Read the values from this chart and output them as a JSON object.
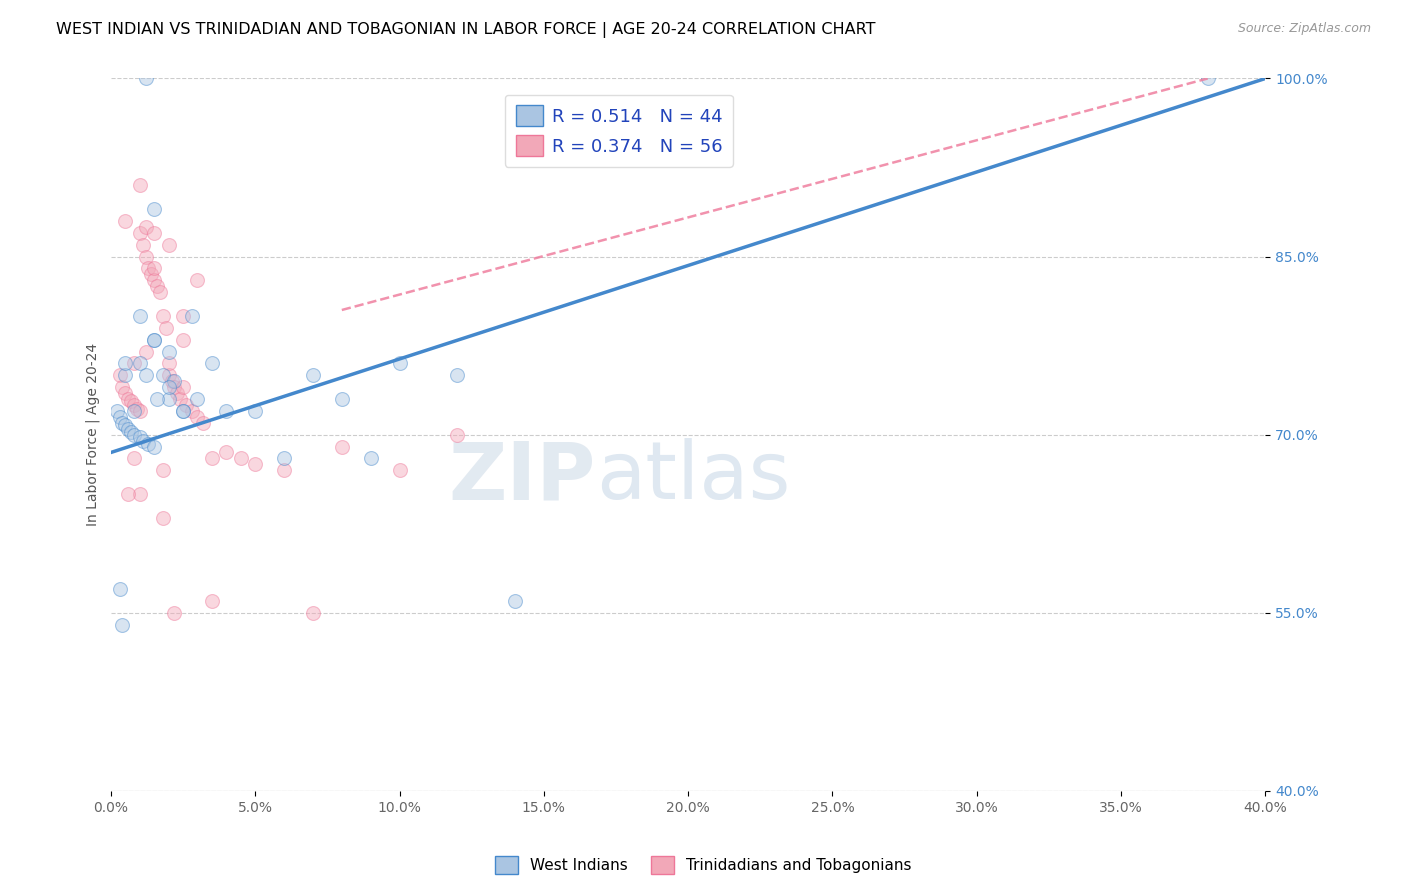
{
  "title": "WEST INDIAN VS TRINIDADIAN AND TOBAGONIAN IN LABOR FORCE | AGE 20-24 CORRELATION CHART",
  "source": "Source: ZipAtlas.com",
  "ylabel": "In Labor Force | Age 20-24",
  "xlim": [
    0.0,
    40.0
  ],
  "ylim": [
    40.0,
    100.0
  ],
  "xticks": [
    0.0,
    5.0,
    10.0,
    15.0,
    20.0,
    25.0,
    30.0,
    35.0,
    40.0
  ],
  "yticks": [
    40.0,
    55.0,
    70.0,
    85.0,
    100.0
  ],
  "blue_R": 0.514,
  "blue_N": 44,
  "pink_R": 0.374,
  "pink_N": 56,
  "blue_color": "#aac5e2",
  "pink_color": "#f2a8b8",
  "blue_line_color": "#4488cc",
  "pink_line_color": "#ee7799",
  "watermark_zip": "ZIP",
  "watermark_atlas": "atlas",
  "legend_blue_label": "West Indians",
  "legend_pink_label": "Trinidadians and Tobagonians",
  "blue_scatter_x": [
    1.2,
    1.5,
    1.0,
    0.5,
    0.2,
    0.3,
    0.4,
    0.5,
    0.6,
    0.7,
    0.8,
    1.0,
    1.1,
    1.3,
    1.5,
    1.8,
    2.0,
    2.2,
    2.5,
    2.0,
    1.5,
    1.0,
    0.5,
    0.8,
    1.2,
    1.6,
    2.0,
    2.5,
    3.0,
    3.5,
    4.0,
    5.0,
    6.0,
    7.0,
    8.0,
    9.0,
    10.0,
    12.0,
    14.0,
    38.0,
    0.3,
    0.4,
    1.5,
    2.8
  ],
  "blue_scatter_y": [
    100.0,
    89.0,
    76.0,
    75.0,
    72.0,
    71.5,
    71.0,
    70.8,
    70.5,
    70.2,
    70.0,
    69.8,
    69.5,
    69.2,
    69.0,
    75.0,
    73.0,
    74.5,
    72.0,
    77.0,
    78.0,
    80.0,
    76.0,
    72.0,
    75.0,
    73.0,
    74.0,
    72.0,
    73.0,
    76.0,
    72.0,
    72.0,
    68.0,
    75.0,
    73.0,
    68.0,
    76.0,
    75.0,
    56.0,
    100.0,
    57.0,
    54.0,
    78.0,
    80.0
  ],
  "pink_scatter_x": [
    0.3,
    0.4,
    0.5,
    0.6,
    0.7,
    0.8,
    0.9,
    1.0,
    1.0,
    1.1,
    1.2,
    1.3,
    1.4,
    1.5,
    1.6,
    1.7,
    1.8,
    1.9,
    2.0,
    2.1,
    2.2,
    2.3,
    2.4,
    2.5,
    2.6,
    2.8,
    3.0,
    3.2,
    3.5,
    4.0,
    5.0,
    7.0,
    10.0,
    12.0,
    1.0,
    1.2,
    1.5,
    2.0,
    2.5,
    3.0,
    0.8,
    1.0,
    1.8,
    2.2,
    3.5,
    6.0,
    8.0,
    0.5,
    1.5,
    2.5,
    0.8,
    1.2,
    2.0,
    4.5,
    0.6,
    1.8
  ],
  "pink_scatter_y": [
    75.0,
    74.0,
    73.5,
    73.0,
    72.8,
    72.5,
    72.2,
    72.0,
    87.0,
    86.0,
    85.0,
    84.0,
    83.5,
    83.0,
    82.5,
    82.0,
    80.0,
    79.0,
    75.0,
    74.5,
    74.0,
    73.5,
    73.0,
    74.0,
    72.5,
    72.0,
    71.5,
    71.0,
    68.0,
    68.5,
    67.5,
    55.0,
    67.0,
    70.0,
    91.0,
    87.5,
    87.0,
    86.0,
    80.0,
    83.0,
    68.0,
    65.0,
    63.0,
    55.0,
    56.0,
    67.0,
    69.0,
    88.0,
    84.0,
    78.0,
    76.0,
    77.0,
    76.0,
    68.0,
    65.0,
    67.0
  ],
  "blue_line_x0": 0.0,
  "blue_line_y0": 68.5,
  "blue_line_x1": 40.0,
  "blue_line_y1": 100.0,
  "pink_line_x0": 8.0,
  "pink_line_y0": 80.5,
  "pink_line_x1": 38.0,
  "pink_line_y1": 100.0,
  "marker_size": 100,
  "marker_alpha": 0.45,
  "title_fontsize": 11.5,
  "axis_label_fontsize": 10,
  "tick_fontsize": 10,
  "legend_fontsize": 13
}
